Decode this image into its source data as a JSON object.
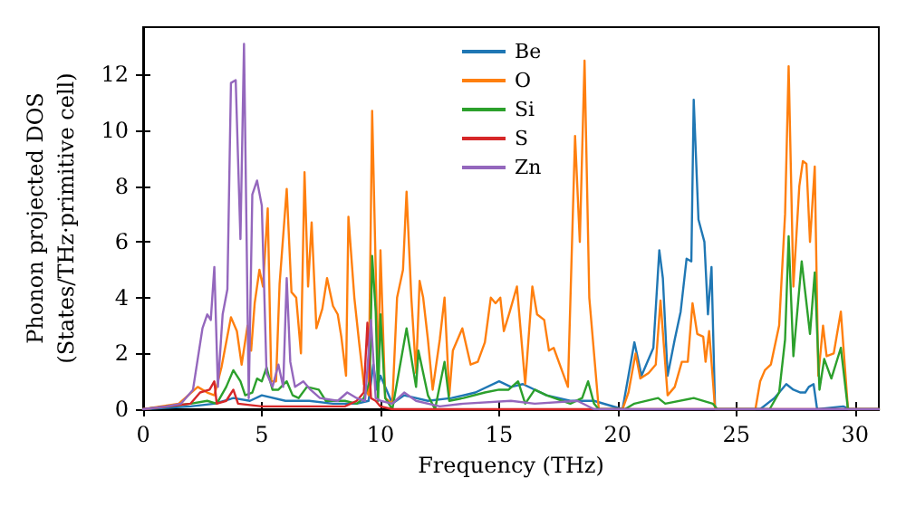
{
  "chart_data": {
    "type": "line",
    "xlabel": "Frequency (THz)",
    "ylabel": "Phonon projected DOS\n(States/THz·primitive cell)",
    "xlim": [
      0,
      31
    ],
    "ylim": [
      0,
      13.7
    ],
    "xticks": [
      0,
      5,
      10,
      15,
      20,
      25,
      30
    ],
    "yticks": [
      0,
      2,
      4,
      6,
      8,
      10,
      12
    ],
    "grid": false,
    "legend": "top",
    "marker": "none",
    "line_style": "solid",
    "series": [
      {
        "name": "Be",
        "color": "#1f77b4",
        "x": [
          0,
          2,
          3,
          3.8,
          4.5,
          5,
          6,
          7,
          8,
          9,
          9.5,
          9.7,
          9.85,
          10,
          10.5,
          11,
          12,
          13,
          14,
          15,
          15.5,
          16,
          17,
          18,
          19,
          20.2,
          20.7,
          21.0,
          21.5,
          21.75,
          21.9,
          22.1,
          22.4,
          22.65,
          22.9,
          23.1,
          23.2,
          23.4,
          23.65,
          23.8,
          23.95,
          24.1,
          26.0,
          26.6,
          27.1,
          27.4,
          27.7,
          27.9,
          28.05,
          28.25,
          28.4,
          29.5,
          29.8,
          31
        ],
        "values": [
          0,
          0.1,
          0.2,
          0.4,
          0.3,
          0.5,
          0.3,
          0.3,
          0.2,
          0.2,
          0.3,
          1.6,
          0.7,
          1.2,
          0.2,
          0.5,
          0.3,
          0.4,
          0.6,
          1.0,
          0.8,
          0.9,
          0.5,
          0.3,
          0.3,
          0,
          2.4,
          1.2,
          2.2,
          5.7,
          4.7,
          1.2,
          2.5,
          3.5,
          5.4,
          5.3,
          11.1,
          6.8,
          6.0,
          3.4,
          5.1,
          0,
          0,
          0.4,
          0.9,
          0.7,
          0.6,
          0.6,
          0.8,
          0.9,
          0,
          0.1,
          0,
          0
        ]
      },
      {
        "name": "O",
        "color": "#ff7f0e",
        "x": [
          0,
          1.5,
          2.3,
          2.7,
          3.0,
          3.3,
          3.7,
          3.95,
          4.15,
          4.4,
          4.55,
          4.7,
          4.9,
          5.05,
          5.25,
          5.4,
          5.6,
          5.75,
          6.05,
          6.25,
          6.45,
          6.65,
          6.8,
          6.95,
          7.1,
          7.3,
          7.55,
          7.75,
          8.0,
          8.2,
          8.35,
          8.55,
          8.65,
          8.9,
          9.1,
          9.3,
          9.5,
          9.65,
          9.8,
          9.9,
          10.0,
          10.2,
          10.5,
          10.7,
          10.95,
          11.1,
          11.3,
          11.5,
          11.65,
          11.8,
          12.0,
          12.2,
          12.5,
          12.7,
          12.9,
          13.05,
          13.45,
          13.8,
          14.1,
          14.4,
          14.65,
          14.85,
          15.05,
          15.2,
          15.45,
          15.75,
          16.1,
          16.4,
          16.6,
          16.9,
          17.1,
          17.3,
          17.6,
          17.9,
          18.2,
          18.4,
          18.6,
          18.8,
          19.2,
          20.2,
          20.45,
          20.75,
          20.95,
          21.3,
          21.6,
          21.8,
          22.1,
          22.4,
          22.7,
          22.95,
          23.15,
          23.35,
          23.6,
          23.7,
          23.85,
          24.1,
          25.8,
          26.0,
          26.2,
          26.45,
          26.8,
          27.05,
          27.2,
          27.4,
          27.65,
          27.8,
          27.95,
          28.1,
          28.3,
          28.45,
          28.65,
          28.8,
          29.1,
          29.4,
          29.7,
          31
        ],
        "values": [
          0,
          0.2,
          0.8,
          0.6,
          0.5,
          1.5,
          3.3,
          2.8,
          1.6,
          3.0,
          2.1,
          3.8,
          5.0,
          4.4,
          7.2,
          1.0,
          1.0,
          4.5,
          7.9,
          4.2,
          4.0,
          2.0,
          8.5,
          4.4,
          6.7,
          2.9,
          3.6,
          4.7,
          3.7,
          3.4,
          2.6,
          1.2,
          6.9,
          4.0,
          2.4,
          0.9,
          0.5,
          10.7,
          5.0,
          1.0,
          5.7,
          0.4,
          0.2,
          4.0,
          5.0,
          7.8,
          4.0,
          1.3,
          4.6,
          4.0,
          2.5,
          0.7,
          2.5,
          4.0,
          0.5,
          2.1,
          2.9,
          1.6,
          1.7,
          2.4,
          4.0,
          3.8,
          4.0,
          2.8,
          3.5,
          4.4,
          0.9,
          4.4,
          3.4,
          3.2,
          2.1,
          2.2,
          1.5,
          0.8,
          9.8,
          6.0,
          12.5,
          4.0,
          0,
          0,
          0.6,
          2.0,
          1.1,
          1.3,
          1.6,
          3.9,
          0.5,
          0.8,
          1.7,
          1.7,
          3.8,
          2.7,
          2.6,
          1.7,
          2.8,
          0,
          0,
          1.0,
          1.4,
          1.6,
          3.0,
          7.0,
          12.3,
          4.4,
          8.0,
          8.9,
          8.8,
          6.0,
          8.7,
          1.2,
          3.0,
          1.9,
          2.0,
          3.5,
          0,
          0
        ]
      },
      {
        "name": "Si",
        "color": "#2ca02c",
        "x": [
          0,
          2.0,
          2.7,
          3.1,
          3.5,
          3.8,
          4.1,
          4.3,
          4.6,
          4.8,
          5.0,
          5.2,
          5.45,
          5.7,
          6.05,
          6.3,
          6.55,
          6.9,
          7.4,
          7.7,
          8.5,
          9.0,
          9.3,
          9.55,
          9.65,
          9.8,
          9.9,
          10.0,
          10.2,
          10.5,
          11.1,
          11.5,
          11.6,
          12.0,
          12.3,
          12.7,
          12.9,
          13.5,
          14.4,
          15.0,
          15.4,
          15.8,
          16.1,
          16.5,
          17.0,
          18.0,
          18.5,
          18.75,
          19.0,
          19.2,
          20.3,
          20.7,
          21.7,
          22.0,
          23.2,
          24.0,
          24.2,
          26.4,
          26.8,
          27.05,
          27.2,
          27.4,
          27.75,
          28.1,
          28.3,
          28.5,
          28.7,
          29.0,
          29.4,
          29.7,
          31
        ],
        "values": [
          0,
          0.2,
          0.3,
          0.2,
          0.8,
          1.4,
          1.0,
          0.5,
          0.6,
          1.1,
          1.0,
          1.5,
          0.7,
          0.7,
          1.0,
          0.5,
          0.4,
          0.8,
          0.7,
          0.3,
          0.3,
          0.2,
          0.4,
          1.0,
          5.5,
          3.5,
          0.3,
          3.4,
          0.4,
          0,
          2.9,
          0.8,
          2.1,
          0.5,
          0,
          1.7,
          0.3,
          0.4,
          0.6,
          0.7,
          0.7,
          1.0,
          0.2,
          0.7,
          0.5,
          0.2,
          0.4,
          1.0,
          0.2,
          0,
          0,
          0.2,
          0.4,
          0.2,
          0.4,
          0.2,
          0,
          0,
          0.6,
          2.5,
          6.2,
          1.9,
          5.3,
          2.7,
          4.9,
          0.7,
          1.8,
          1.1,
          2.2,
          0,
          0
        ]
      },
      {
        "name": "S",
        "color": "#d62728",
        "x": [
          0,
          2.0,
          2.4,
          2.8,
          3.0,
          3.1,
          3.5,
          3.8,
          4.0,
          5.0,
          8.5,
          9.0,
          9.3,
          9.45,
          9.6,
          9.8,
          10.0,
          10.5,
          31
        ],
        "values": [
          0,
          0.2,
          0.6,
          0.7,
          1.0,
          0.2,
          0.3,
          0.7,
          0.2,
          0.1,
          0.1,
          0.3,
          0.6,
          3.1,
          0.4,
          0.3,
          0.1,
          0,
          0
        ]
      },
      {
        "name": "Zn",
        "color": "#9467bd",
        "x": [
          0,
          1.0,
          1.6,
          2.1,
          2.5,
          2.7,
          2.85,
          3.0,
          3.15,
          3.35,
          3.55,
          3.7,
          3.9,
          4.1,
          4.25,
          4.45,
          4.6,
          4.8,
          5.0,
          5.2,
          5.45,
          5.7,
          5.9,
          6.05,
          6.2,
          6.4,
          6.75,
          7.05,
          7.45,
          8.2,
          8.6,
          9.0,
          9.35,
          9.6,
          9.8,
          10.0,
          10.5,
          11.0,
          11.5,
          12.5,
          13.5,
          15.5,
          16.5,
          18.3,
          19.0,
          31
        ],
        "values": [
          0,
          0.1,
          0.2,
          0.7,
          2.9,
          3.4,
          3.2,
          5.1,
          0.8,
          3.4,
          4.3,
          11.7,
          11.8,
          6.1,
          13.1,
          0.4,
          7.7,
          8.2,
          7.3,
          1.3,
          0.8,
          1.6,
          0.8,
          4.7,
          1.7,
          0.8,
          1.0,
          0.7,
          0.4,
          0.3,
          0.6,
          0.4,
          0.3,
          3.2,
          0.4,
          0.3,
          0.2,
          0.6,
          0.3,
          0.1,
          0.2,
          0.3,
          0.2,
          0.3,
          0,
          0
        ]
      }
    ]
  }
}
